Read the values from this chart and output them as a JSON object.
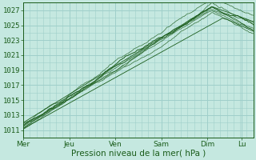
{
  "bg_color": "#c5e8e0",
  "grid_color": "#9fcfca",
  "line_color": "#1a5c1a",
  "x_labels": [
    "Mer",
    "Jeu",
    "Ven",
    "Sam",
    "Dim",
    "Lu"
  ],
  "x_ticks_norm": [
    0.0,
    0.2,
    0.4,
    0.6,
    0.8,
    0.95
  ],
  "y_ticks": [
    1011,
    1013,
    1015,
    1017,
    1019,
    1021,
    1023,
    1025,
    1027
  ],
  "ylim": [
    1010.2,
    1028.0
  ],
  "xlim": [
    0.0,
    1.0
  ],
  "xlabel": "Pression niveau de la mer( hPa )",
  "xlabel_fontsize": 7.5,
  "tick_fontsize": 6.5,
  "total_steps": 300
}
